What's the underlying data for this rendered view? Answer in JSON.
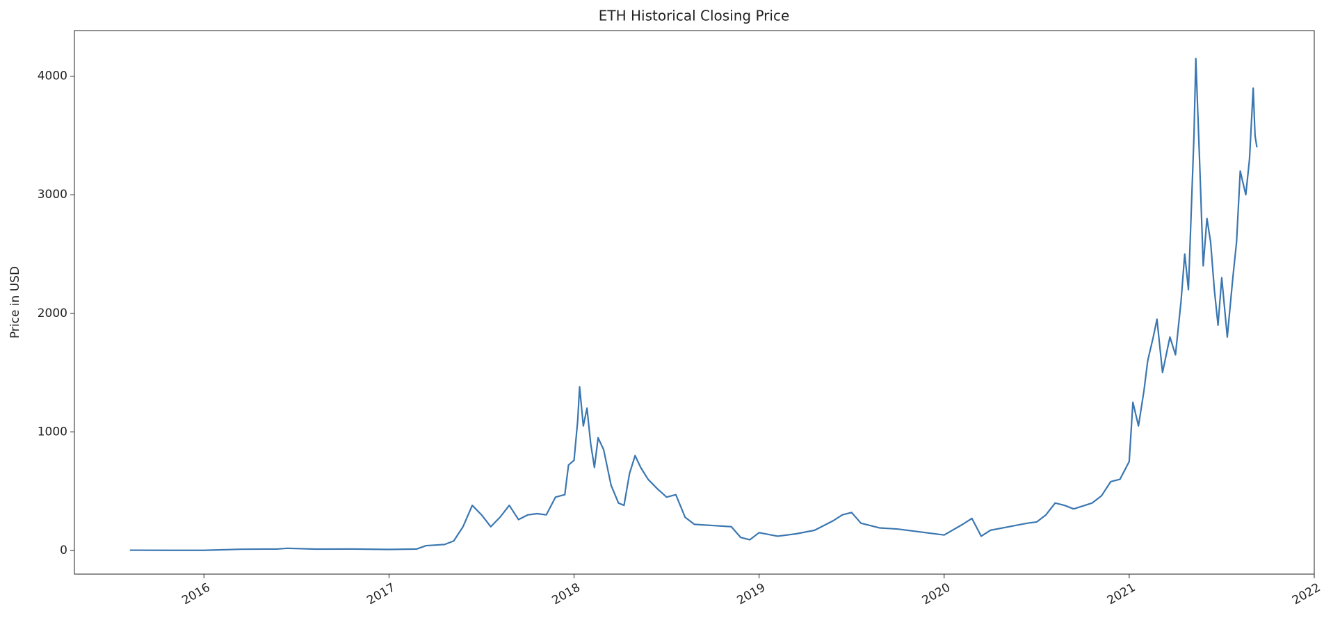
{
  "chart_data": {
    "type": "line",
    "title": "ETH Historical Closing Price",
    "y_label": "Price in USD",
    "x": [
      2015.6,
      2015.8,
      2016.0,
      2016.2,
      2016.4,
      2016.45,
      2016.6,
      2016.8,
      2017.0,
      2017.15,
      2017.2,
      2017.3,
      2017.35,
      2017.4,
      2017.45,
      2017.5,
      2017.55,
      2017.6,
      2017.65,
      2017.7,
      2017.75,
      2017.8,
      2017.85,
      2017.9,
      2017.95,
      2017.97,
      2018.0,
      2018.02,
      2018.03,
      2018.05,
      2018.07,
      2018.09,
      2018.11,
      2018.13,
      2018.16,
      2018.2,
      2018.24,
      2018.27,
      2018.3,
      2018.33,
      2018.36,
      2018.4,
      2018.45,
      2018.5,
      2018.55,
      2018.6,
      2018.65,
      2018.75,
      2018.85,
      2018.9,
      2018.95,
      2019.0,
      2019.1,
      2019.2,
      2019.3,
      2019.4,
      2019.45,
      2019.5,
      2019.55,
      2019.65,
      2019.75,
      2019.9,
      2020.0,
      2020.1,
      2020.15,
      2020.2,
      2020.25,
      2020.35,
      2020.45,
      2020.5,
      2020.55,
      2020.6,
      2020.65,
      2020.7,
      2020.8,
      2020.85,
      2020.9,
      2020.95,
      2021.0,
      2021.02,
      2021.05,
      2021.08,
      2021.1,
      2021.13,
      2021.15,
      2021.18,
      2021.22,
      2021.25,
      2021.28,
      2021.3,
      2021.32,
      2021.35,
      2021.36,
      2021.38,
      2021.4,
      2021.42,
      2021.44,
      2021.46,
      2021.48,
      2021.5,
      2021.53,
      2021.56,
      2021.58,
      2021.6,
      2021.63,
      2021.65,
      2021.67,
      2021.68,
      2021.69
    ],
    "series": [
      {
        "color": "#3a76b0",
        "values": [
          2,
          1,
          1,
          10,
          12,
          18,
          11,
          12,
          8,
          12,
          40,
          50,
          80,
          200,
          380,
          300,
          200,
          280,
          380,
          260,
          300,
          310,
          300,
          450,
          470,
          720,
          760,
          1100,
          1380,
          1050,
          1200,
          900,
          700,
          950,
          850,
          550,
          400,
          380,
          650,
          800,
          700,
          600,
          520,
          450,
          470,
          280,
          220,
          210,
          200,
          110,
          90,
          150,
          120,
          140,
          170,
          250,
          300,
          320,
          230,
          190,
          180,
          150,
          130,
          220,
          270,
          120,
          170,
          200,
          230,
          240,
          300,
          400,
          380,
          350,
          400,
          460,
          580,
          600,
          750,
          1250,
          1050,
          1350,
          1600,
          1800,
          1950,
          1500,
          1800,
          1650,
          2100,
          2500,
          2200,
          3500,
          4150,
          3300,
          2400,
          2800,
          2600,
          2200,
          1900,
          2300,
          1800,
          2300,
          2600,
          3200,
          3000,
          3300,
          3900,
          3500,
          3400
        ]
      }
    ],
    "xlim": [
      2015.3,
      2022.0
    ],
    "xticks": [
      2016,
      2017,
      2018,
      2019,
      2020,
      2021,
      2022
    ],
    "ylim": [
      -200,
      4385
    ],
    "yticks": [
      0,
      1000,
      2000,
      3000,
      4000
    ]
  }
}
